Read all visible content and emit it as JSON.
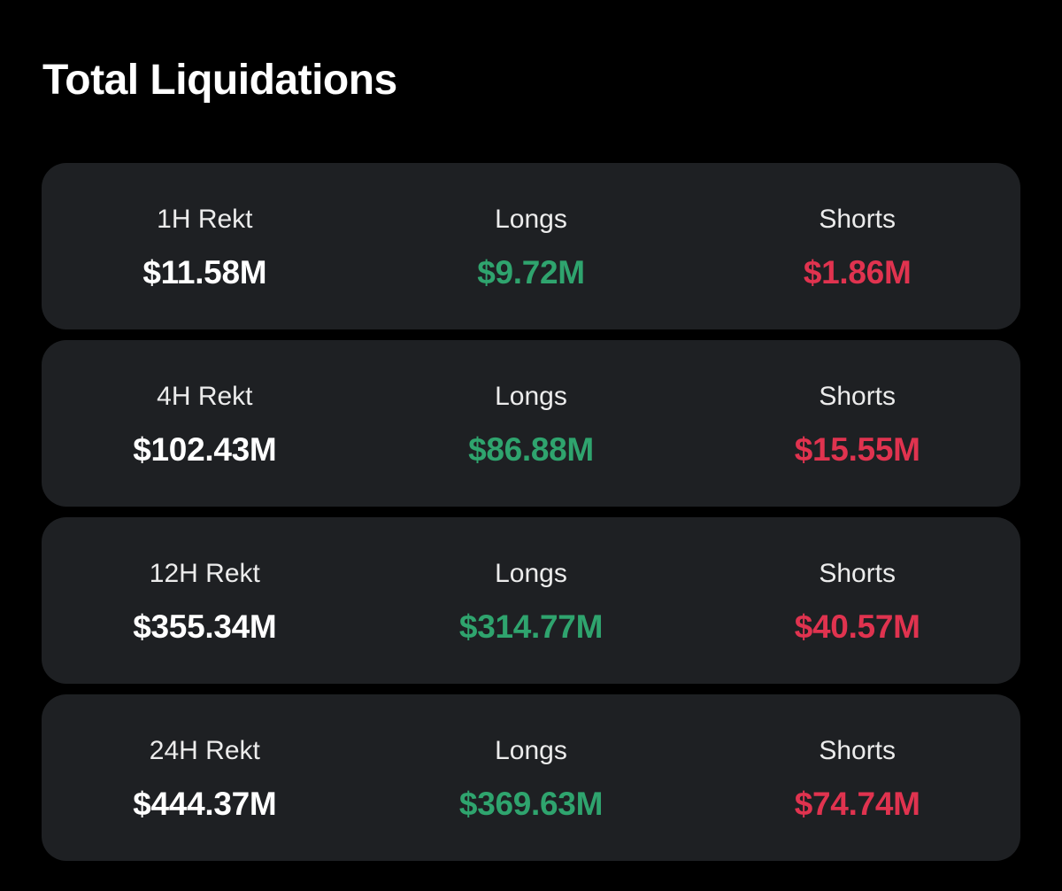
{
  "page": {
    "title": "Total Liquidations"
  },
  "colors": {
    "background": "#000000",
    "card": "#1e2023",
    "total": "#ffffff",
    "longs": "#2fa46e",
    "shorts": "#e0334f"
  },
  "rows": [
    {
      "period_label": "1H Rekt",
      "total": "$11.58M",
      "longs_label": "Longs",
      "longs": "$9.72M",
      "shorts_label": "Shorts",
      "shorts": "$1.86M"
    },
    {
      "period_label": "4H Rekt",
      "total": "$102.43M",
      "longs_label": "Longs",
      "longs": "$86.88M",
      "shorts_label": "Shorts",
      "shorts": "$15.55M"
    },
    {
      "period_label": "12H Rekt",
      "total": "$355.34M",
      "longs_label": "Longs",
      "longs": "$314.77M",
      "shorts_label": "Shorts",
      "shorts": "$40.57M"
    },
    {
      "period_label": "24H Rekt",
      "total": "$444.37M",
      "longs_label": "Longs",
      "longs": "$369.63M",
      "shorts_label": "Shorts",
      "shorts": "$74.74M"
    }
  ]
}
